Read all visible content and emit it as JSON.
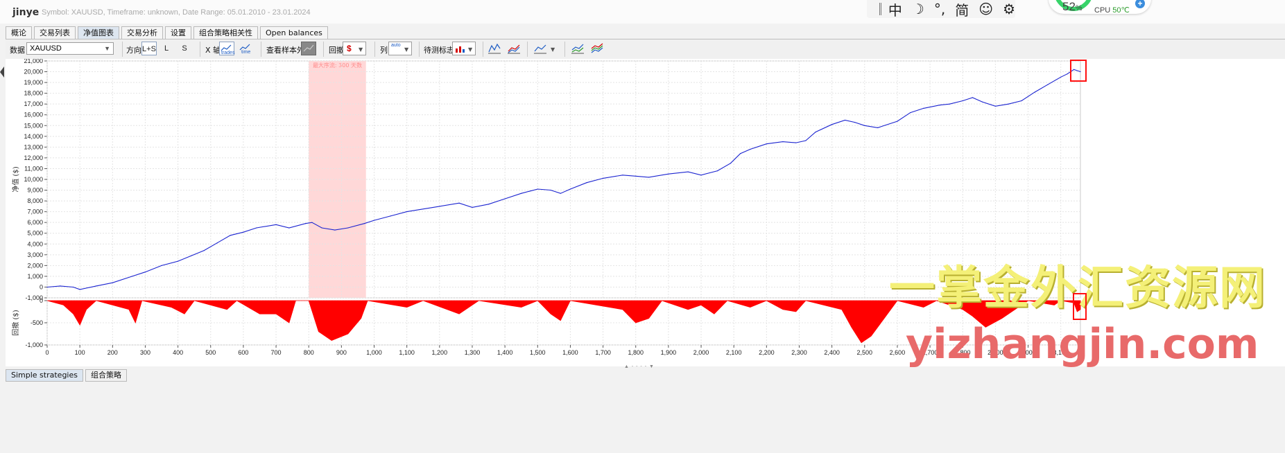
{
  "app": {
    "title": "jinye",
    "info": "Symbol: XAUUSD, Timeframe: unknown, Date Range: 05.01.2010 - 23.01.2024"
  },
  "ime": {
    "mode": "中",
    "moon": "☽",
    "punct": "°,",
    "script": "简",
    "emoji": "☺",
    "settings": "⚙"
  },
  "cpu_widget": {
    "percent": "52",
    "percent_unit": "%",
    "label": "CPU",
    "temp": "50℃",
    "plus": "+"
  },
  "tabs": [
    {
      "label": "概论"
    },
    {
      "label": "交易列表"
    },
    {
      "label": "净值图表"
    },
    {
      "label": "交易分析"
    },
    {
      "label": "设置"
    },
    {
      "label": "组合策略相关性"
    },
    {
      "label": "Open balances"
    }
  ],
  "toolbar": {
    "data_label": "数据",
    "data_value": "XAUUSD",
    "direction_label": "方向",
    "dir_ls": "L+S",
    "dir_l": "L",
    "dir_s": "S",
    "xaxis_label": "X 轴",
    "xaxis_trades": "trades",
    "xaxis_time": "time",
    "oos_label": "查看样本外",
    "drawdown_label": "回撤",
    "column_label": "列",
    "column_auto": "auto",
    "benchmark_label": "待测标志"
  },
  "bottom_tabs": [
    {
      "label": "Simple strategies"
    },
    {
      "label": "组合策略"
    }
  ],
  "watermark": {
    "cn": "一掌金外汇资源网",
    "url": "yizhangjin.com"
  },
  "colors": {
    "equity": "#1a23d0",
    "drawdown": "#ff0000",
    "highlight": "#ffd8d8"
  },
  "chart_data": [
    {
      "type": "line",
      "ylabel": "净值 ($)",
      "xlim": [
        0,
        3160
      ],
      "ylim": [
        -1000,
        21000
      ],
      "yticks": [
        -1000,
        0,
        1000,
        2000,
        3000,
        4000,
        5000,
        6000,
        7000,
        8000,
        9000,
        10000,
        11000,
        12000,
        13000,
        14000,
        15000,
        16000,
        17000,
        18000,
        19000,
        20000,
        21000
      ],
      "ytick_labels": [
        "-1,000",
        "0",
        "1,000",
        "2,000",
        "3,000",
        "4,000",
        "5,000",
        "6,000",
        "7,000",
        "8,000",
        "9,000",
        "10,000",
        "11,000",
        "12,000",
        "13,000",
        "14,000",
        "15,000",
        "16,000",
        "17,000",
        "18,000",
        "19,000",
        "20,000",
        "21,000"
      ],
      "grid": true,
      "highlight": {
        "x": [
          800,
          975
        ],
        "label": "最大序流: 300 天数"
      },
      "series": [
        {
          "values": [
            [
              0,
              0
            ],
            [
              40,
              100
            ],
            [
              80,
              0
            ],
            [
              100,
              -220
            ],
            [
              150,
              100
            ],
            [
              200,
              400
            ],
            [
              260,
              1000
            ],
            [
              300,
              1400
            ],
            [
              350,
              2000
            ],
            [
              400,
              2400
            ],
            [
              440,
              2900
            ],
            [
              480,
              3400
            ],
            [
              520,
              4100
            ],
            [
              560,
              4800
            ],
            [
              600,
              5100
            ],
            [
              640,
              5500
            ],
            [
              700,
              5800
            ],
            [
              740,
              5500
            ],
            [
              790,
              5900
            ],
            [
              810,
              6000
            ],
            [
              840,
              5500
            ],
            [
              880,
              5300
            ],
            [
              920,
              5500
            ],
            [
              970,
              5900
            ],
            [
              1000,
              6200
            ],
            [
              1050,
              6600
            ],
            [
              1100,
              7000
            ],
            [
              1200,
              7500
            ],
            [
              1260,
              7800
            ],
            [
              1300,
              7400
            ],
            [
              1350,
              7700
            ],
            [
              1400,
              8200
            ],
            [
              1450,
              8700
            ],
            [
              1500,
              9100
            ],
            [
              1540,
              9000
            ],
            [
              1570,
              8700
            ],
            [
              1600,
              9100
            ],
            [
              1650,
              9700
            ],
            [
              1700,
              10100
            ],
            [
              1760,
              10400
            ],
            [
              1800,
              10300
            ],
            [
              1840,
              10200
            ],
            [
              1900,
              10500
            ],
            [
              1960,
              10700
            ],
            [
              2000,
              10400
            ],
            [
              2050,
              10800
            ],
            [
              2090,
              11500
            ],
            [
              2120,
              12400
            ],
            [
              2150,
              12800
            ],
            [
              2200,
              13300
            ],
            [
              2250,
              13500
            ],
            [
              2290,
              13400
            ],
            [
              2320,
              13600
            ],
            [
              2350,
              14400
            ],
            [
              2400,
              15100
            ],
            [
              2440,
              15500
            ],
            [
              2470,
              15300
            ],
            [
              2500,
              15000
            ],
            [
              2540,
              14800
            ],
            [
              2600,
              15400
            ],
            [
              2640,
              16200
            ],
            [
              2680,
              16600
            ],
            [
              2730,
              16900
            ],
            [
              2760,
              17000
            ],
            [
              2800,
              17300
            ],
            [
              2830,
              17600
            ],
            [
              2860,
              17200
            ],
            [
              2900,
              16800
            ],
            [
              2940,
              17000
            ],
            [
              2980,
              17300
            ],
            [
              3020,
              18100
            ],
            [
              3060,
              18800
            ],
            [
              3100,
              19500
            ],
            [
              3120,
              19800
            ],
            [
              3140,
              20200
            ],
            [
              3160,
              20000
            ]
          ]
        }
      ]
    },
    {
      "type": "area",
      "ylabel": "回撤 ($)",
      "xlim": [
        0,
        3160
      ],
      "ylim": [
        -1000,
        0
      ],
      "yticks": [
        -1000,
        -500,
        0
      ],
      "ytick_labels": [
        "-1,000",
        "-500",
        "0"
      ],
      "xticks": [
        0,
        100,
        200,
        300,
        400,
        500,
        600,
        700,
        800,
        900,
        1000,
        1100,
        1200,
        1300,
        1400,
        1500,
        1600,
        1700,
        1800,
        1900,
        2000,
        2100,
        2200,
        2300,
        2400,
        2500,
        2600,
        2700,
        2800,
        2900,
        3000,
        3100
      ],
      "xtick_labels": [
        "0",
        "100",
        "200",
        "300",
        "400",
        "500",
        "600",
        "700",
        "800",
        "900",
        "1,000",
        "1,100",
        "1,200",
        "1,300",
        "1,400",
        "1,500",
        "1,600",
        "1,700",
        "1,800",
        "1,900",
        "2,000",
        "2,100",
        "2,200",
        "2,300",
        "2,400",
        "2,500",
        "2,600",
        "2,700",
        "2,800",
        "2,900",
        "3,000",
        "3,100"
      ],
      "series": [
        {
          "values": [
            [
              0,
              0
            ],
            [
              50,
              -100
            ],
            [
              80,
              -300
            ],
            [
              100,
              -550
            ],
            [
              120,
              -200
            ],
            [
              150,
              0
            ],
            [
              250,
              -200
            ],
            [
              270,
              -500
            ],
            [
              290,
              0
            ],
            [
              380,
              -150
            ],
            [
              420,
              -300
            ],
            [
              450,
              0
            ],
            [
              550,
              -200
            ],
            [
              580,
              0
            ],
            [
              650,
              -300
            ],
            [
              700,
              -300
            ],
            [
              740,
              -500
            ],
            [
              760,
              0
            ],
            [
              800,
              0
            ],
            [
              830,
              -700
            ],
            [
              870,
              -900
            ],
            [
              920,
              -750
            ],
            [
              960,
              -400
            ],
            [
              980,
              0
            ],
            [
              1100,
              -150
            ],
            [
              1150,
              0
            ],
            [
              1260,
              -300
            ],
            [
              1290,
              -150
            ],
            [
              1320,
              0
            ],
            [
              1450,
              -150
            ],
            [
              1500,
              0
            ],
            [
              1540,
              -300
            ],
            [
              1570,
              -450
            ],
            [
              1600,
              0
            ],
            [
              1760,
              -200
            ],
            [
              1800,
              -500
            ],
            [
              1840,
              -400
            ],
            [
              1880,
              0
            ],
            [
              1960,
              -200
            ],
            [
              2000,
              -100
            ],
            [
              2040,
              -300
            ],
            [
              2080,
              0
            ],
            [
              2150,
              -150
            ],
            [
              2200,
              0
            ],
            [
              2250,
              -200
            ],
            [
              2290,
              -250
            ],
            [
              2320,
              0
            ],
            [
              2430,
              -200
            ],
            [
              2460,
              -600
            ],
            [
              2490,
              -950
            ],
            [
              2520,
              -800
            ],
            [
              2560,
              -400
            ],
            [
              2600,
              0
            ],
            [
              2680,
              -150
            ],
            [
              2720,
              0
            ],
            [
              2800,
              -200
            ],
            [
              2830,
              -350
            ],
            [
              2870,
              -600
            ],
            [
              2920,
              -400
            ],
            [
              2960,
              -200
            ],
            [
              3000,
              0
            ],
            [
              3080,
              -100
            ],
            [
              3100,
              0
            ],
            [
              3140,
              -50
            ],
            [
              3150,
              -250
            ],
            [
              3160,
              -200
            ]
          ]
        }
      ]
    }
  ]
}
